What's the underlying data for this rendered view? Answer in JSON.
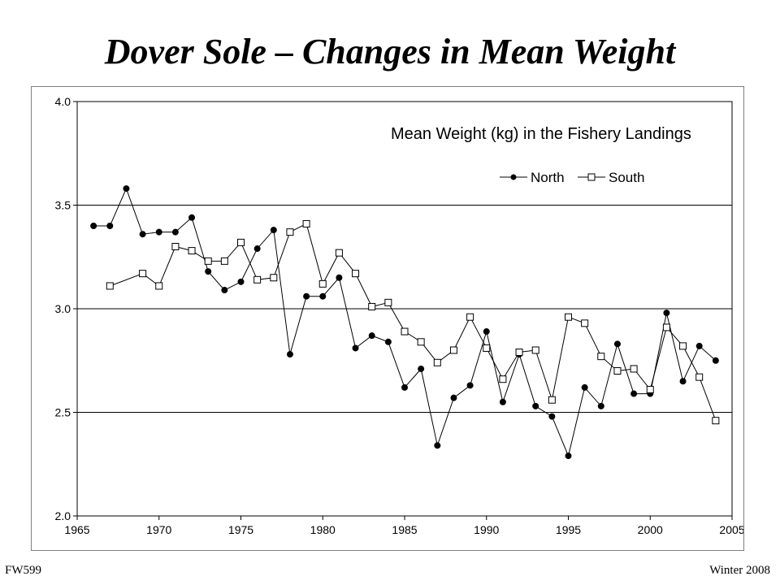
{
  "slide": {
    "title": "Dover Sole – Changes in Mean Weight",
    "footer_left": "FW599",
    "footer_right": "Winter 2008"
  },
  "chart_data": {
    "type": "line",
    "title": "Mean Weight (kg) in the Fishery Landings",
    "xlabel": "",
    "ylabel": "",
    "xlim": [
      1965,
      2005
    ],
    "ylim": [
      2.0,
      4.0
    ],
    "x_ticks": [
      "1965",
      "1970",
      "1975",
      "1980",
      "1985",
      "1990",
      "1995",
      "2000",
      "2005"
    ],
    "y_ticks": [
      "2.0",
      "2.5",
      "3.0",
      "3.5",
      "4.0"
    ],
    "grid": "horizontal major lines",
    "legend_position": "top-right",
    "series": [
      {
        "name": "North",
        "marker": "filled-circle",
        "color": "#000000",
        "points": [
          [
            1966,
            3.4
          ],
          [
            1967,
            3.4
          ],
          [
            1968,
            3.58
          ],
          [
            1969,
            3.36
          ],
          [
            1970,
            3.37
          ],
          [
            1971,
            3.37
          ],
          [
            1972,
            3.44
          ],
          [
            1973,
            3.18
          ],
          [
            1974,
            3.09
          ],
          [
            1975,
            3.13
          ],
          [
            1976,
            3.29
          ],
          [
            1977,
            3.38
          ],
          [
            1978,
            2.78
          ],
          [
            1979,
            3.06
          ],
          [
            1980,
            3.06
          ],
          [
            1981,
            3.15
          ],
          [
            1982,
            2.81
          ],
          [
            1983,
            2.87
          ],
          [
            1984,
            2.84
          ],
          [
            1985,
            2.62
          ],
          [
            1986,
            2.71
          ],
          [
            1987,
            2.34
          ],
          [
            1988,
            2.57
          ],
          [
            1989,
            2.63
          ],
          [
            1990,
            2.89
          ],
          [
            1991,
            2.55
          ],
          [
            1992,
            2.78
          ],
          [
            1993,
            2.53
          ],
          [
            1994,
            2.48
          ],
          [
            1995,
            2.29
          ],
          [
            1996,
            2.62
          ],
          [
            1997,
            2.53
          ],
          [
            1998,
            2.83
          ],
          [
            1999,
            2.59
          ],
          [
            2000,
            2.59
          ],
          [
            2001,
            2.98
          ],
          [
            2002,
            2.65
          ],
          [
            2003,
            2.82
          ],
          [
            2004,
            2.75
          ]
        ]
      },
      {
        "name": "South",
        "marker": "open-square",
        "color": "#000000",
        "points": [
          [
            1967,
            3.11
          ],
          [
            1969,
            3.17
          ],
          [
            1970,
            3.11
          ],
          [
            1971,
            3.3
          ],
          [
            1972,
            3.28
          ],
          [
            1973,
            3.23
          ],
          [
            1974,
            3.23
          ],
          [
            1975,
            3.32
          ],
          [
            1976,
            3.14
          ],
          [
            1977,
            3.15
          ],
          [
            1978,
            3.37
          ],
          [
            1979,
            3.41
          ],
          [
            1980,
            3.12
          ],
          [
            1981,
            3.27
          ],
          [
            1982,
            3.17
          ],
          [
            1983,
            3.01
          ],
          [
            1984,
            3.03
          ],
          [
            1985,
            2.89
          ],
          [
            1986,
            2.84
          ],
          [
            1987,
            2.74
          ],
          [
            1988,
            2.8
          ],
          [
            1989,
            2.96
          ],
          [
            1990,
            2.81
          ],
          [
            1991,
            2.66
          ],
          [
            1992,
            2.79
          ],
          [
            1993,
            2.8
          ],
          [
            1994,
            2.56
          ],
          [
            1995,
            2.96
          ],
          [
            1996,
            2.93
          ],
          [
            1997,
            2.77
          ],
          [
            1998,
            2.7
          ],
          [
            1999,
            2.71
          ],
          [
            2000,
            2.61
          ],
          [
            2001,
            2.91
          ],
          [
            2002,
            2.82
          ],
          [
            2003,
            2.67
          ],
          [
            2004,
            2.46
          ]
        ]
      }
    ]
  }
}
